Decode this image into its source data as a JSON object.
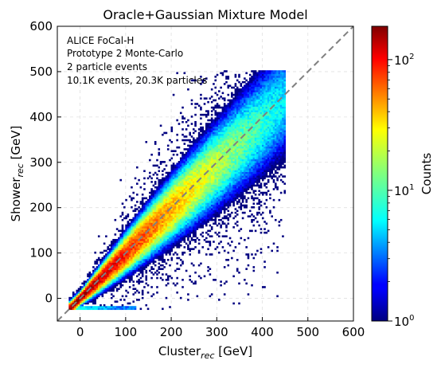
{
  "chart_data": {
    "type": "heatmap",
    "title": "Oracle+Gaussian Mixture Model",
    "xlabel": {
      "main": "Cluster",
      "sub": "rec",
      "unit": " [GeV]"
    },
    "ylabel": {
      "main": "Shower",
      "sub": "rec",
      "unit": " [GeV]"
    },
    "xlim": [
      -50,
      600
    ],
    "ylim": [
      -50,
      600
    ],
    "xticks": [
      0,
      100,
      200,
      300,
      400,
      500,
      600
    ],
    "yticks": [
      0,
      100,
      200,
      300,
      400,
      500,
      600
    ],
    "grid": true,
    "annotations": [
      "ALICE FoCal-H",
      "Prototype 2 Monte-Carlo",
      "2 particle events",
      "10.1K events, 20.3K particles"
    ],
    "annotation_position": "top-left",
    "reference_line": {
      "style": "dashed",
      "color": "#808080",
      "from": [
        -50,
        -50
      ],
      "to": [
        600,
        600
      ]
    },
    "colormap": "jet",
    "colorbar": {
      "label": "Counts",
      "scale": "log",
      "range": [
        1,
        180
      ],
      "ticks": [
        {
          "value": 1,
          "base": "10",
          "exp": "0"
        },
        {
          "value": 10,
          "base": "10",
          "exp": "1"
        },
        {
          "value": 100,
          "base": "10",
          "exp": "2"
        }
      ]
    },
    "distribution": {
      "description_units": "GeV",
      "x_range": [
        -25,
        450
      ],
      "y_range": [
        -25,
        500
      ],
      "correlation": "strong positive, concentrated along y = x",
      "peak_counts": 180,
      "floor_band": {
        "y": -22,
        "x_range": [
          -25,
          120
        ]
      }
    }
  }
}
